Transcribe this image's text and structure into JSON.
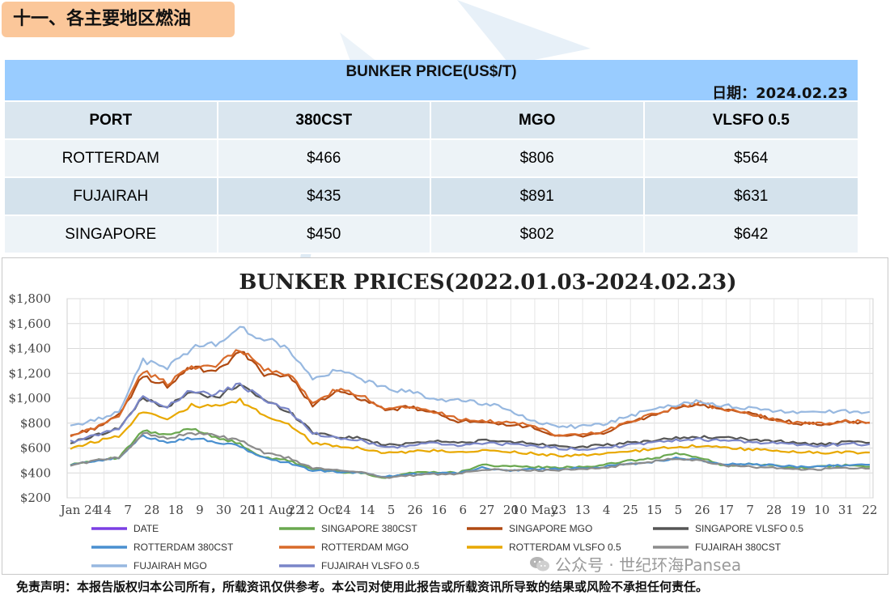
{
  "section": {
    "title": "十一、各主要地区燃油"
  },
  "watermark": {
    "text": "pansea"
  },
  "table": {
    "title": "BUNKER PRICE(US$/T)",
    "date_label": "日期：2024.02.23",
    "headers": [
      "PORT",
      "380CST",
      "MGO",
      "VLSFO 0.5"
    ],
    "rows": [
      {
        "port": "ROTTERDAM",
        "cst": "$466",
        "mgo": "$806",
        "vlsfo": "$564"
      },
      {
        "port": "FUJAIRAH",
        "cst": "$435",
        "mgo": "$891",
        "vlsfo": "$631"
      },
      {
        "port": "SINGAPORE",
        "cst": "$450",
        "mgo": "$802",
        "vlsfo": "$642"
      }
    ]
  },
  "chart_data": {
    "type": "line",
    "title": "BUNKER PRICES(2022.01.03-2024.02.23)",
    "xlabel": "",
    "ylabel": "",
    "ylim": [
      200,
      1800
    ],
    "yticks": [
      "$200",
      "$400",
      "$600",
      "$800",
      "$1,000",
      "$1,200",
      "$1,400",
      "$1,600",
      "$1,800"
    ],
    "ytick_values": [
      200,
      400,
      600,
      800,
      1000,
      1200,
      1400,
      1600,
      1800
    ],
    "xticks": [
      "Jan 24",
      "14",
      "7",
      "28",
      "18",
      "9",
      "30",
      "20",
      "11 Aug",
      "22",
      "12 Oct",
      "24",
      "14",
      "5",
      "26",
      "16",
      "6",
      "27",
      "20",
      "10 May",
      "23",
      "13",
      "4",
      "25",
      "15",
      "5",
      "26",
      "17",
      "7",
      "28",
      "19",
      "10",
      "31",
      "22"
    ],
    "grid": true,
    "legend_position": "bottom",
    "series": [
      {
        "name": "DATE",
        "color": "#7b3fe4",
        "values": []
      },
      {
        "name": "SINGAPORE 380CST",
        "color": "#6aa84f",
        "values": [
          470,
          500,
          520,
          740,
          700,
          760,
          690,
          630,
          520,
          500,
          430,
          410,
          400,
          360,
          400,
          410,
          400,
          470,
          450,
          450,
          440,
          450,
          460,
          500,
          510,
          560,
          520,
          460,
          470,
          460,
          440,
          450,
          460,
          450
        ]
      },
      {
        "name": "SINGAPORE MGO",
        "color": "#b04a12",
        "values": [
          700,
          760,
          860,
          1180,
          1100,
          1250,
          1200,
          1380,
          1200,
          1180,
          950,
          1050,
          1000,
          900,
          930,
          880,
          820,
          800,
          780,
          780,
          690,
          700,
          720,
          800,
          860,
          920,
          950,
          900,
          880,
          830,
          800,
          790,
          810,
          802
        ]
      },
      {
        "name": "SINGAPORE VLSFO 0.5",
        "color": "#555555",
        "values": [
          640,
          700,
          760,
          1000,
          930,
          1050,
          1000,
          1120,
          980,
          900,
          730,
          690,
          680,
          620,
          640,
          660,
          640,
          660,
          650,
          640,
          620,
          610,
          620,
          640,
          660,
          680,
          690,
          680,
          670,
          660,
          640,
          630,
          645,
          642
        ]
      },
      {
        "name": "ROTTERDAM 380CST",
        "color": "#4a90d0",
        "values": [
          460,
          500,
          520,
          700,
          650,
          680,
          650,
          610,
          520,
          480,
          420,
          410,
          400,
          370,
          390,
          400,
          400,
          440,
          420,
          430,
          430,
          440,
          450,
          470,
          490,
          520,
          500,
          470,
          470,
          460,
          450,
          455,
          465,
          466
        ]
      },
      {
        "name": "ROTTERDAM MGO",
        "color": "#d86a2a",
        "values": [
          690,
          760,
          860,
          1220,
          1120,
          1260,
          1250,
          1400,
          1230,
          1200,
          960,
          1070,
          1020,
          920,
          940,
          890,
          840,
          820,
          800,
          790,
          700,
          710,
          730,
          810,
          870,
          930,
          960,
          910,
          880,
          830,
          800,
          800,
          815,
          806
        ]
      },
      {
        "name": "ROTTERDAM VLSFO 0.5",
        "color": "#e8a800",
        "values": [
          600,
          650,
          700,
          900,
          840,
          940,
          930,
          980,
          860,
          800,
          640,
          620,
          600,
          560,
          570,
          580,
          560,
          580,
          570,
          560,
          540,
          540,
          550,
          570,
          590,
          610,
          620,
          600,
          590,
          580,
          570,
          560,
          565,
          564
        ]
      },
      {
        "name": "FUJAIRAH  380CST",
        "color": "#8c8c8c",
        "values": [
          460,
          500,
          520,
          720,
          680,
          720,
          700,
          660,
          560,
          520,
          440,
          420,
          410,
          360,
          380,
          390,
          390,
          430,
          420,
          420,
          420,
          430,
          440,
          470,
          490,
          520,
          500,
          460,
          450,
          440,
          430,
          430,
          440,
          435
        ]
      },
      {
        "name": "FUJAIRAH MGO",
        "color": "#97b8e0",
        "values": [
          780,
          820,
          900,
          1300,
          1250,
          1400,
          1440,
          1560,
          1480,
          1400,
          1150,
          1220,
          1160,
          1080,
          1050,
          1000,
          980,
          960,
          920,
          820,
          780,
          770,
          790,
          860,
          900,
          950,
          980,
          940,
          920,
          900,
          890,
          890,
          895,
          891
        ]
      },
      {
        "name": "FUJAIRAH VLSFO 0.5",
        "color": "#7a86c8",
        "values": [
          650,
          700,
          760,
          1010,
          940,
          1060,
          1030,
          1110,
          990,
          900,
          720,
          680,
          660,
          600,
          620,
          640,
          620,
          640,
          630,
          620,
          600,
          590,
          600,
          620,
          640,
          660,
          670,
          660,
          650,
          640,
          625,
          620,
          632,
          631
        ]
      }
    ]
  },
  "wechat": {
    "text": "公众号 · 世纪环海Pansea"
  },
  "disclaimer": {
    "text": "免责声明：本报告版权归本公司所有，所载资讯仅供参考。本公司对使用此报告或所载资讯所导致的结果或风险不承担任何责任。"
  }
}
